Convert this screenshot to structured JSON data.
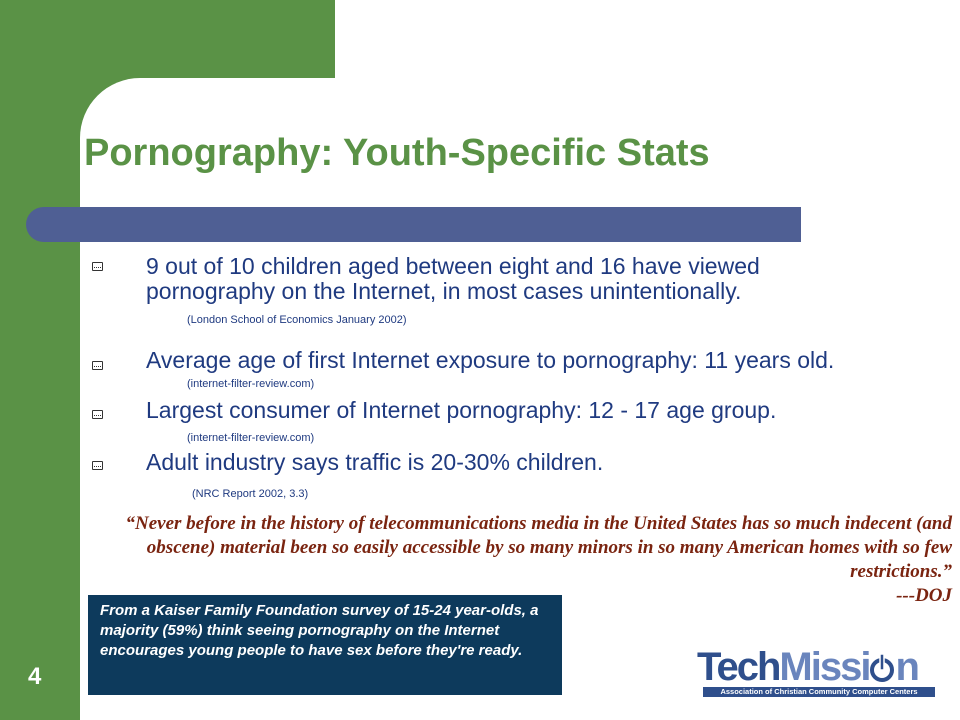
{
  "slide": {
    "title": "Pornography: Youth-Specific Stats",
    "page_number": "4",
    "colors": {
      "green": "#5a9246",
      "blue_bar": "#4f5f94",
      "text_blue": "#1f3a80",
      "quote_red": "#7a2410",
      "box_navy": "#0d3a5c"
    }
  },
  "bullets": [
    {
      "text": "9 out of 10 children aged between eight and 16 have viewed pornography on the Internet, in most cases unintentionally.",
      "source": "(London School of Economics January 2002)",
      "icon": "keyboard-bullet-icon"
    },
    {
      "text": "Average age of first Internet exposure to pornography: 11 years old.",
      "source": "(internet-filter-review.com)",
      "icon": "keyboard-bullet-icon"
    },
    {
      "text": "Largest consumer of Internet pornography: 12 - 17 age group.",
      "source": "(internet-filter-review.com)",
      "icon": "keyboard-bullet-icon"
    },
    {
      "text": "Adult industry says traffic is 20-30% children.",
      "source": "(NRC Report 2002, 3.3)",
      "icon": "keyboard-bullet-icon"
    }
  ],
  "quote": {
    "text": "“Never before in the history of telecommunications media in the United States has so much indecent (and obscene) material been so easily accessible by so many minors in so many American homes with so few restrictions.”",
    "attribution": "---DOJ"
  },
  "kaiser_box": {
    "text": "From a Kaiser Family Foundation survey of 15-24 year-olds, a majority (59%) think seeing pornography on the Internet encourages young people to have sex before they're ready."
  },
  "logo": {
    "word_dark": "Tech",
    "word_light": "Missi",
    "word_end": "n",
    "tagline": "Association of Christian Community Computer Centers"
  }
}
